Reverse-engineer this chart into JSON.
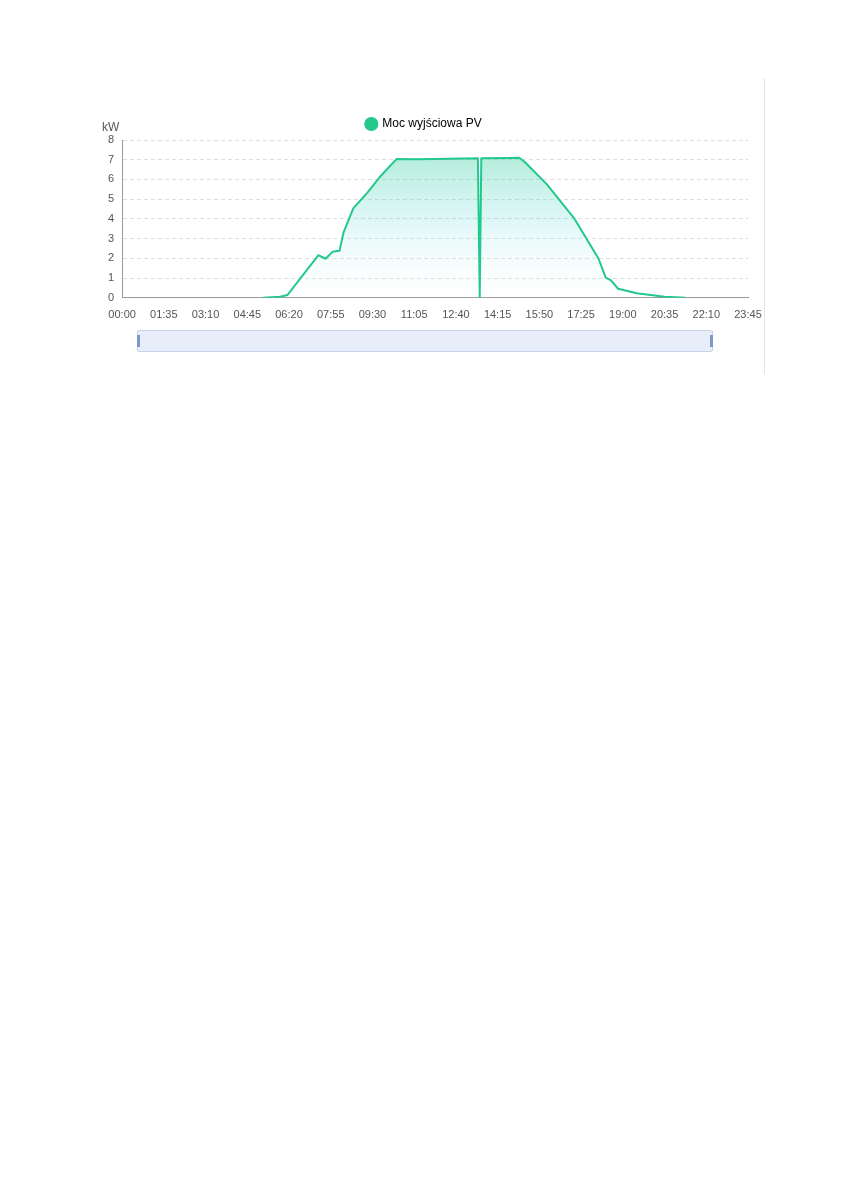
{
  "chart_data": {
    "type": "area",
    "ylabel": "kW",
    "legend": "top",
    "grid": "y",
    "marker": "none",
    "line_style": "solid",
    "xlim": [
      0,
      23.75
    ],
    "ylim": [
      0,
      8
    ],
    "yticks": [
      0,
      1,
      2,
      3,
      4,
      5,
      6,
      7,
      8
    ],
    "xticks": [
      {
        "value": 0,
        "label": "00:00"
      },
      {
        "value": 1.5833,
        "label": "01:35"
      },
      {
        "value": 3.1667,
        "label": "03:10"
      },
      {
        "value": 4.75,
        "label": "04:45"
      },
      {
        "value": 6.3333,
        "label": "06:20"
      },
      {
        "value": 7.9167,
        "label": "07:55"
      },
      {
        "value": 9.5,
        "label": "09:30"
      },
      {
        "value": 11.0833,
        "label": "11:05"
      },
      {
        "value": 12.6667,
        "label": "12:40"
      },
      {
        "value": 14.25,
        "label": "14:15"
      },
      {
        "value": 15.8333,
        "label": "15:50"
      },
      {
        "value": 17.4167,
        "label": "17:25"
      },
      {
        "value": 19,
        "label": "19:00"
      },
      {
        "value": 20.5833,
        "label": "20:35"
      },
      {
        "value": 22.1667,
        "label": "22:10"
      },
      {
        "value": 23.75,
        "label": "23:45"
      }
    ],
    "series": [
      {
        "name": "Moc wyjściowa PV",
        "color": "#22c98b",
        "x": [
          5.35,
          6.0,
          6.27,
          7.45,
          7.72,
          7.98,
          8.25,
          8.4,
          8.77,
          9.3,
          9.82,
          10.42,
          11.13,
          12.45,
          13.5,
          13.57,
          13.63,
          15.07,
          15.27,
          16.12,
          17.17,
          18.08,
          18.35,
          18.55,
          18.82,
          19.53,
          20.58,
          21.37
        ],
        "values": [
          0,
          0.05,
          0.14,
          2.16,
          1.98,
          2.33,
          2.39,
          3.3,
          4.53,
          5.32,
          6.19,
          7.04,
          7.02,
          7.05,
          7.07,
          0,
          7.07,
          7.1,
          6.9,
          5.75,
          4.0,
          1.98,
          1.02,
          0.88,
          0.46,
          0.23,
          0.05,
          0
        ]
      }
    ]
  }
}
